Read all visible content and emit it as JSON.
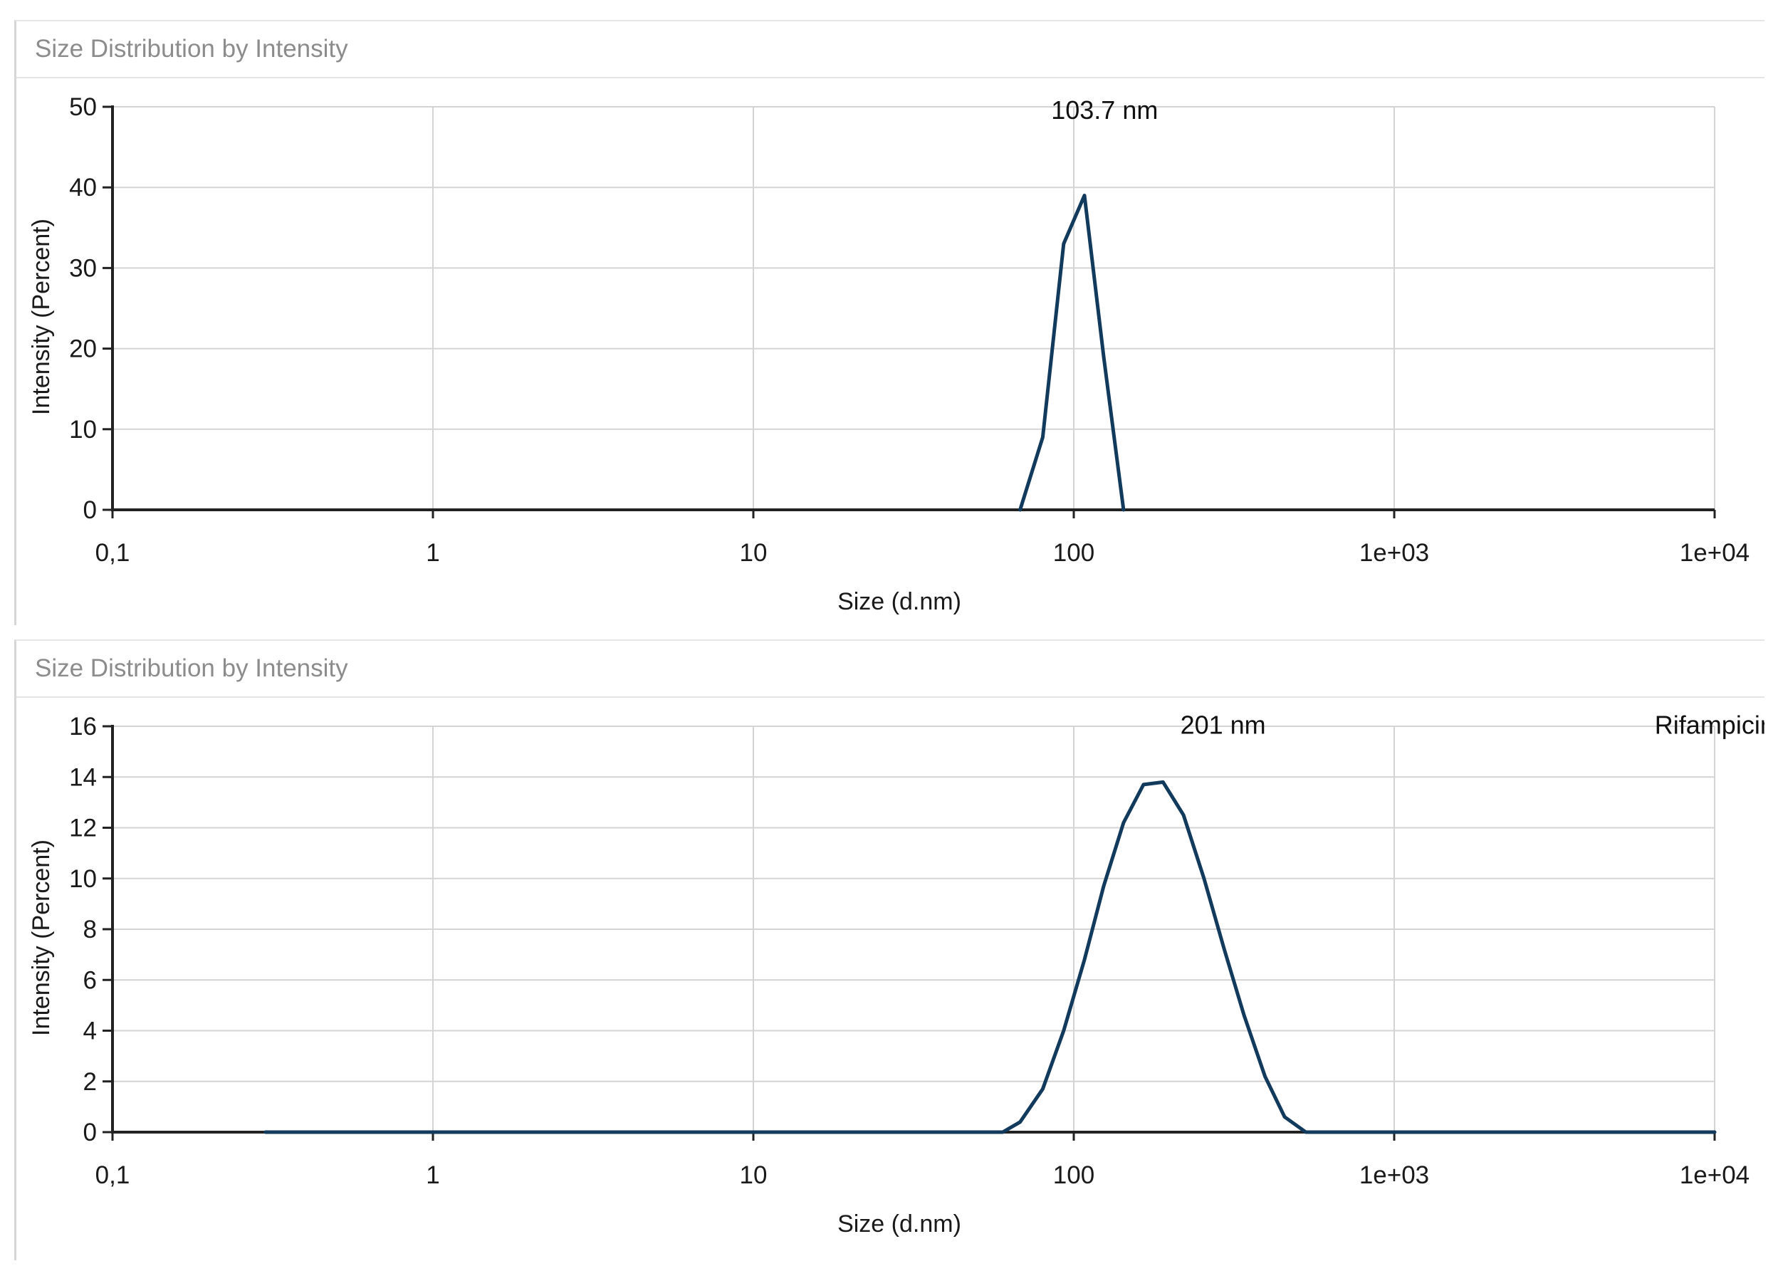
{
  "colors": {
    "line": "#123a5c",
    "grid": "#d4d4d4",
    "axis": "#222222",
    "header_text": "#8c8c8c"
  },
  "chart_data": [
    {
      "type": "line",
      "panel_title": "Size Distribution by Intensity",
      "xlabel": "Size (d.nm)",
      "ylabel": "Intensity (Percent)",
      "xscale": "log",
      "xlim": [
        0.1,
        10000
      ],
      "ylim": [
        0,
        50
      ],
      "x_ticks": [
        0.1,
        1,
        10,
        100,
        1000,
        10000
      ],
      "x_tick_labels": [
        "0,1",
        "1",
        "10",
        "100",
        "1e+03",
        "1e+04"
      ],
      "y_ticks": [
        0,
        10,
        20,
        30,
        40,
        50
      ],
      "y_tick_labels": [
        "0",
        "10",
        "20",
        "30",
        "40",
        "50"
      ],
      "grid": true,
      "annotations": [
        {
          "text": "103.7 nm",
          "x": 85,
          "y": 48.5
        }
      ],
      "series": [
        {
          "x": [
            68,
            80,
            93,
            108,
            124,
            143
          ],
          "y": [
            0,
            9,
            33,
            39,
            19,
            0
          ]
        }
      ]
    },
    {
      "type": "line",
      "panel_title": "Size Distribution by Intensity",
      "xlabel": "Size (d.nm)",
      "ylabel": "Intensity (Percent)",
      "xscale": "log",
      "xlim": [
        0.1,
        10000
      ],
      "ylim": [
        0,
        16
      ],
      "x_ticks": [
        0.1,
        1,
        10,
        100,
        1000,
        10000
      ],
      "x_tick_labels": [
        "0,1",
        "1",
        "10",
        "100",
        "1e+03",
        "1e+04"
      ],
      "y_ticks": [
        0,
        2,
        4,
        6,
        8,
        10,
        12,
        14,
        16
      ],
      "y_tick_labels": [
        "0",
        "2",
        "4",
        "6",
        "8",
        "10",
        "12",
        "14",
        "16"
      ],
      "grid": true,
      "annotations": [
        {
          "text": "201 nm",
          "x": 215,
          "y": 15.7
        },
        {
          "text": "Rifampicin",
          "x": 6500,
          "y": 15.7
        }
      ],
      "series": [
        {
          "x": [
            0.3,
            1,
            10,
            40,
            60,
            68,
            80,
            93,
            108,
            124,
            143,
            165,
            190,
            220,
            255,
            295,
            340,
            395,
            455,
            530,
            560,
            1000,
            10000
          ],
          "y": [
            0,
            0,
            0,
            0,
            0,
            0.4,
            1.7,
            4.0,
            6.8,
            9.7,
            12.2,
            13.7,
            13.8,
            12.5,
            10.0,
            7.2,
            4.6,
            2.2,
            0.6,
            0,
            0,
            0,
            0
          ]
        }
      ]
    }
  ]
}
